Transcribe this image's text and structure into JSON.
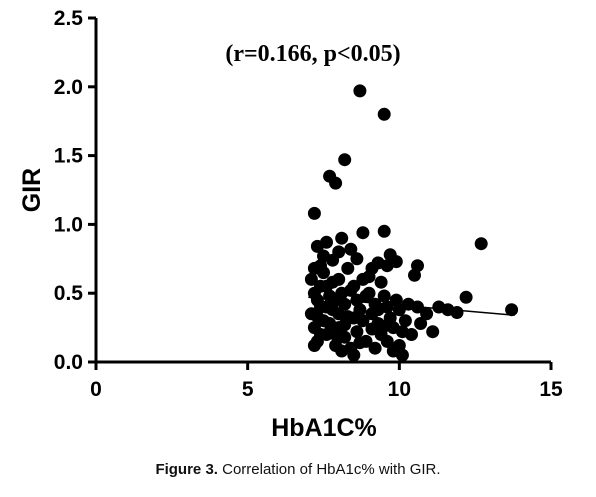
{
  "caption": {
    "label": "Figure 3.",
    "text": "Correlation of HbA1c% with GIR."
  },
  "chart_data": {
    "type": "scatter",
    "title": "",
    "annotation": "(r=0.166, p<0.05)",
    "xlabel": "HbA1C%",
    "ylabel": "GIR",
    "xlim": [
      0,
      15
    ],
    "ylim": [
      0,
      2.5
    ],
    "xticks": [
      0,
      5,
      10,
      15
    ],
    "xtick_labels": [
      "0",
      "5",
      "10",
      "15"
    ],
    "yticks": [
      0.0,
      0.5,
      1.0,
      1.5,
      2.0,
      2.5
    ],
    "ytick_labels": [
      "0.0",
      "0.5",
      "1.0",
      "1.5",
      "2.0",
      "2.5"
    ],
    "grid": false,
    "marker_color": "#000000",
    "trend_line": {
      "x": [
        7.0,
        13.8
      ],
      "y": [
        0.47,
        0.34
      ]
    },
    "points": [
      [
        8.7,
        1.97
      ],
      [
        9.5,
        1.8
      ],
      [
        8.2,
        1.47
      ],
      [
        7.7,
        1.35
      ],
      [
        7.9,
        1.3
      ],
      [
        7.2,
        1.08
      ],
      [
        12.7,
        0.86
      ],
      [
        9.5,
        0.95
      ],
      [
        8.8,
        0.94
      ],
      [
        7.3,
        0.84
      ],
      [
        7.6,
        0.87
      ],
      [
        8.1,
        0.9
      ],
      [
        9.7,
        0.78
      ],
      [
        8.4,
        0.82
      ],
      [
        9.3,
        0.72
      ],
      [
        9.9,
        0.73
      ],
      [
        10.6,
        0.7
      ],
      [
        10.5,
        0.63
      ],
      [
        7.5,
        0.77
      ],
      [
        7.8,
        0.74
      ],
      [
        8.0,
        0.8
      ],
      [
        8.6,
        0.75
      ],
      [
        9.1,
        0.68
      ],
      [
        9.6,
        0.7
      ],
      [
        12.2,
        0.47
      ],
      [
        13.7,
        0.38
      ],
      [
        11.3,
        0.4
      ],
      [
        10.9,
        0.35
      ],
      [
        11.6,
        0.38
      ],
      [
        10.3,
        0.42
      ],
      [
        11.1,
        0.22
      ],
      [
        10.0,
        0.12
      ],
      [
        10.1,
        0.05
      ],
      [
        9.8,
        0.08
      ],
      [
        10.2,
        0.3
      ],
      [
        10.7,
        0.28
      ],
      [
        7.1,
        0.6
      ],
      [
        7.2,
        0.5
      ],
      [
        7.3,
        0.45
      ],
      [
        7.4,
        0.4
      ],
      [
        7.1,
        0.35
      ],
      [
        7.2,
        0.25
      ],
      [
        7.3,
        0.15
      ],
      [
        7.5,
        0.65
      ],
      [
        7.6,
        0.55
      ],
      [
        7.7,
        0.48
      ],
      [
        7.8,
        0.38
      ],
      [
        7.5,
        0.3
      ],
      [
        7.6,
        0.2
      ],
      [
        7.9,
        0.12
      ],
      [
        8.0,
        0.6
      ],
      [
        8.1,
        0.5
      ],
      [
        8.2,
        0.42
      ],
      [
        8.3,
        0.33
      ],
      [
        8.0,
        0.25
      ],
      [
        8.2,
        0.18
      ],
      [
        8.4,
        0.1
      ],
      [
        8.5,
        0.55
      ],
      [
        8.6,
        0.45
      ],
      [
        8.7,
        0.38
      ],
      [
        8.8,
        0.3
      ],
      [
        8.6,
        0.22
      ],
      [
        8.9,
        0.15
      ],
      [
        9.0,
        0.5
      ],
      [
        9.2,
        0.42
      ],
      [
        9.1,
        0.35
      ],
      [
        9.3,
        0.28
      ],
      [
        9.4,
        0.2
      ],
      [
        9.0,
        0.62
      ],
      [
        9.5,
        0.48
      ],
      [
        9.6,
        0.4
      ],
      [
        9.7,
        0.32
      ],
      [
        9.8,
        0.25
      ],
      [
        9.6,
        0.15
      ],
      [
        9.9,
        0.45
      ],
      [
        10.0,
        0.38
      ],
      [
        10.1,
        0.22
      ],
      [
        7.4,
        0.7
      ],
      [
        7.8,
        0.58
      ],
      [
        8.3,
        0.68
      ],
      [
        8.8,
        0.6
      ],
      [
        9.4,
        0.58
      ],
      [
        7.2,
        0.12
      ],
      [
        8.1,
        0.08
      ],
      [
        8.5,
        0.05
      ],
      [
        9.2,
        0.1
      ],
      [
        7.4,
        0.55
      ],
      [
        7.9,
        0.45
      ],
      [
        8.4,
        0.52
      ],
      [
        8.9,
        0.48
      ],
      [
        9.5,
        0.26
      ],
      [
        10.4,
        0.2
      ],
      [
        10.6,
        0.4
      ],
      [
        11.9,
        0.36
      ],
      [
        7.3,
        0.33
      ],
      [
        7.7,
        0.28
      ],
      [
        8.2,
        0.27
      ],
      [
        8.7,
        0.14
      ],
      [
        9.3,
        0.38
      ],
      [
        7.6,
        0.4
      ],
      [
        8.0,
        0.35
      ],
      [
        8.5,
        0.32
      ],
      [
        9.1,
        0.24
      ],
      [
        7.2,
        0.68
      ],
      [
        7.4,
        0.2
      ],
      [
        7.9,
        0.2
      ]
    ]
  }
}
